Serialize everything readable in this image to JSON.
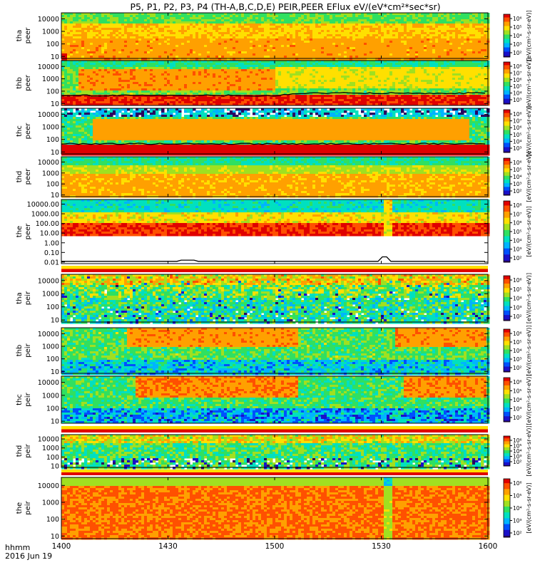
{
  "title": "P5, P1, P2, P3, P4 (TH-A,B,C,D,E) PEIR,PEER EFlux eV/(eV*cm²*sec*sr)",
  "colors": {
    "palette": [
      "#2a0060",
      "#1a10c8",
      "#0050ff",
      "#00b4ff",
      "#00e0c0",
      "#30e060",
      "#a0e020",
      "#ffe000",
      "#ffa000",
      "#ff5000",
      "#e00000"
    ]
  },
  "chart_data": [
    {
      "type": "heatmap",
      "probe": "tha",
      "species": "peer",
      "ylabel": [
        "tha",
        "peer"
      ],
      "ylog": true,
      "ylim": [
        7,
        30000
      ],
      "yticks": [
        {
          "v": 10,
          "label": "10"
        },
        {
          "v": 100,
          "label": "100"
        },
        {
          "v": 1000,
          "label": "1000"
        },
        {
          "v": 10000,
          "label": "10000"
        }
      ],
      "cbar_ticks": [
        "10⁶",
        "10⁵",
        "10⁴",
        "10³",
        "10²"
      ],
      "cbar_label": "[eV/(cm²-s-sr-eV)]"
    },
    {
      "type": "heatmap",
      "probe": "thb",
      "species": "peer",
      "ylabel": [
        "thb",
        "peer"
      ],
      "ylog": true,
      "ylim": [
        7,
        30000
      ],
      "yticks": [
        {
          "v": 10,
          "label": "10"
        },
        {
          "v": 100,
          "label": "100"
        },
        {
          "v": 1000,
          "label": "1000"
        },
        {
          "v": 10000,
          "label": "10000"
        }
      ],
      "cbar_ticks": [
        "10⁸",
        "10⁷",
        "10⁶",
        "10⁵",
        "10⁴",
        "10³"
      ],
      "cbar_label": "[eV/(cm²-s-sr-eV)]"
    },
    {
      "type": "heatmap",
      "probe": "thc",
      "species": "peer",
      "ylabel": [
        "thc",
        "peer"
      ],
      "ylog": true,
      "ylim": [
        7,
        30000
      ],
      "yticks": [
        {
          "v": 10,
          "label": "10"
        },
        {
          "v": 100,
          "label": "100"
        },
        {
          "v": 1000,
          "label": "1000"
        },
        {
          "v": 10000,
          "label": "10000"
        }
      ],
      "cbar_ticks": [
        "10⁸",
        "10⁷",
        "10⁶",
        "10⁵",
        "10⁴",
        "10³"
      ],
      "cbar_label": "[eV/(cm²-s-sr-eV)]"
    },
    {
      "type": "heatmap",
      "probe": "thd",
      "species": "peer",
      "ylabel": [
        "thd",
        "peer"
      ],
      "ylog": true,
      "ylim": [
        7,
        30000
      ],
      "yticks": [
        {
          "v": 10,
          "label": "10"
        },
        {
          "v": 100,
          "label": "100"
        },
        {
          "v": 1000,
          "label": "1000"
        },
        {
          "v": 10000,
          "label": "10000"
        }
      ],
      "cbar_ticks": [
        "10⁶",
        "10⁵",
        "10⁴",
        "10³",
        "10²"
      ],
      "cbar_label": "[eV/(cm²-s-sr-eV)]"
    },
    {
      "type": "heatmap",
      "probe": "the",
      "species": "peer",
      "ylabel": [
        "the",
        "peer"
      ],
      "ylog": true,
      "ylim": [
        0.007,
        30000
      ],
      "yticks": [
        {
          "v": 0.01,
          "label": "0.01"
        },
        {
          "v": 0.1,
          "label": "0.10"
        },
        {
          "v": 1,
          "label": "1.00"
        },
        {
          "v": 10,
          "label": "10.00"
        },
        {
          "v": 100,
          "label": "100.00"
        },
        {
          "v": 1000,
          "label": "1000.00"
        },
        {
          "v": 10000,
          "label": "10000.00"
        }
      ],
      "cbar_ticks": [
        "10⁸",
        "10⁷",
        "10⁶",
        "10⁵",
        "10⁴",
        "10³",
        "10²"
      ],
      "cbar_label": "[eV/(cm²-s-sr-eV)]"
    },
    {
      "type": "heatmap",
      "probe": "tha",
      "species": "peir",
      "ylabel": [
        "tha",
        "peir"
      ],
      "ylog": true,
      "ylim": [
        7,
        30000
      ],
      "yticks": [
        {
          "v": 10,
          "label": "10"
        },
        {
          "v": 100,
          "label": "100"
        },
        {
          "v": 1000,
          "label": "1000"
        },
        {
          "v": 10000,
          "label": "10000"
        }
      ],
      "cbar_ticks": [
        "10⁶",
        "10⁵",
        "10⁴",
        "10³",
        "10²"
      ],
      "cbar_label": "[eV/(cm²-s-sr-eV)]"
    },
    {
      "type": "heatmap",
      "probe": "thb",
      "species": "peir",
      "ylabel": [
        "thb",
        "peir"
      ],
      "ylog": true,
      "ylim": [
        7,
        30000
      ],
      "yticks": [
        {
          "v": 10,
          "label": "10"
        },
        {
          "v": 100,
          "label": "100"
        },
        {
          "v": 1000,
          "label": "1000"
        },
        {
          "v": 10000,
          "label": "10000"
        }
      ],
      "cbar_ticks": [
        "10⁶",
        "10⁵",
        "10⁴",
        "10³",
        "10²"
      ],
      "cbar_label": "[eV/(cm²-s-sr-eV)]"
    },
    {
      "type": "heatmap",
      "probe": "thc",
      "species": "peir",
      "ylabel": [
        "thc",
        "peir"
      ],
      "ylog": true,
      "ylim": [
        7,
        30000
      ],
      "yticks": [
        {
          "v": 10,
          "label": "10"
        },
        {
          "v": 100,
          "label": "100"
        },
        {
          "v": 1000,
          "label": "1000"
        },
        {
          "v": 10000,
          "label": "10000"
        }
      ],
      "cbar_ticks": [
        "10⁶",
        "10⁵",
        "10⁴",
        "10³",
        "10²"
      ],
      "cbar_label": "[eV/(cm²-s-sr-eV)]"
    },
    {
      "type": "heatmap",
      "probe": "thd",
      "species": "peir",
      "ylabel": [
        "thd",
        "peir"
      ],
      "ylog": true,
      "ylim": [
        7,
        30000
      ],
      "yticks": [
        {
          "v": 10,
          "label": "10"
        },
        {
          "v": 100,
          "label": "100"
        },
        {
          "v": 1000,
          "label": "1000"
        },
        {
          "v": 10000,
          "label": "10000"
        }
      ],
      "cbar_ticks": [
        "10⁶",
        "10⁵",
        "10⁴",
        "10³",
        "10²"
      ],
      "cbar_label": "[eV/(cm²-s-sr-eV)]"
    },
    {
      "type": "heatmap",
      "probe": "the",
      "species": "peir",
      "ylabel": [
        "the",
        "peir"
      ],
      "ylog": true,
      "ylim": [
        7,
        30000
      ],
      "yticks": [
        {
          "v": 10,
          "label": "10"
        },
        {
          "v": 100,
          "label": "100"
        },
        {
          "v": 1000,
          "label": "1000"
        },
        {
          "v": 10000,
          "label": "10000"
        }
      ],
      "cbar_ticks": [
        "10⁶",
        "10⁵",
        "10⁴",
        "10³",
        "10²"
      ],
      "cbar_label": "[eV/(cm²-s-sr-eV)]"
    }
  ],
  "xaxis": {
    "ticks": [
      "1400",
      "1430",
      "1500",
      "1530",
      "1600"
    ],
    "label_line1": "hhmm",
    "label_line2": "2016 Jun 19"
  }
}
